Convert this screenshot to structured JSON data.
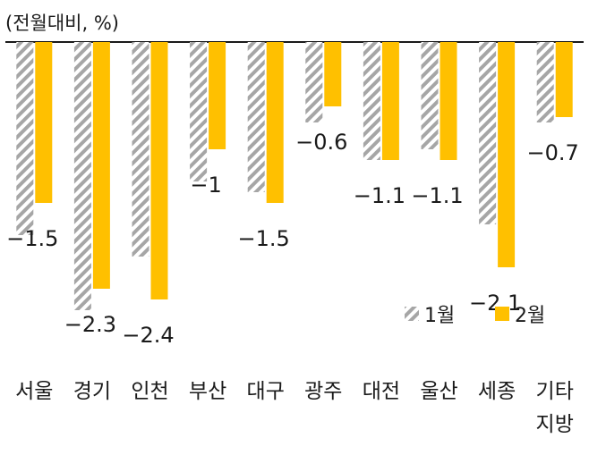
{
  "chart_data": {
    "type": "bar",
    "unit_label": "(전월대비, %)",
    "categories": [
      [
        "서울"
      ],
      [
        "경기"
      ],
      [
        "인천"
      ],
      [
        "부산"
      ],
      [
        "대구"
      ],
      [
        "광주"
      ],
      [
        "대전"
      ],
      [
        "울산"
      ],
      [
        "세종"
      ],
      [
        "기타",
        "지방"
      ]
    ],
    "series": [
      {
        "name": "1월",
        "values": [
          -1.8,
          -2.5,
          -2.0,
          -1.3,
          -1.4,
          -0.75,
          -1.1,
          -1.0,
          -1.7,
          -0.75
        ]
      },
      {
        "name": "2월",
        "values": [
          -1.5,
          -2.3,
          -2.4,
          -1.0,
          -1.5,
          -0.6,
          -1.1,
          -1.1,
          -2.1,
          -0.7
        ]
      }
    ],
    "data_labels_series": "2월",
    "ylim": [
      -2.6,
      0
    ],
    "colors": {
      "1월": "#a6a6a6",
      "2월": "#ffc000"
    },
    "legend": "bottom-right"
  }
}
